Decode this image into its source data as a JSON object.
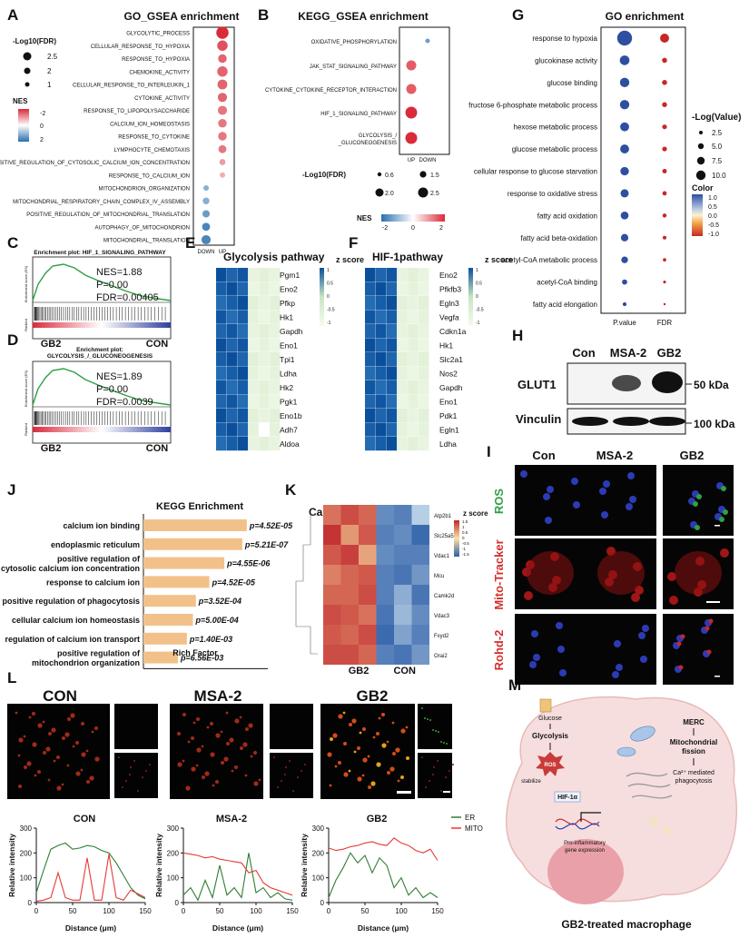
{
  "figure": {
    "panels": {
      "A": "A",
      "B": "B",
      "C": "C",
      "D": "D",
      "E": "E",
      "F": "F",
      "G": "G",
      "H": "H",
      "I": "I",
      "J": "J",
      "K": "K",
      "L": "L",
      "M": "M"
    }
  },
  "panel_A": {
    "title": "GO_GSEA enrichment",
    "size_legend_title": "-Log10(FDR)",
    "size_legend": [
      "2.5",
      "2",
      "1"
    ],
    "color_legend_title": "NES",
    "color_legend": [
      "-2",
      "0",
      "2"
    ],
    "xticks": [
      "DOWN",
      "UP"
    ]
  },
  "panel_B": {
    "title": "KEGG_GSEA enrichment",
    "xticks": [
      "UP",
      "DOWN"
    ],
    "size_legend_title": "-Log10(FDR)",
    "size_legend": [
      "0.6",
      "1.5",
      "2.0",
      "2.5"
    ],
    "color_legend_title": "NES",
    "color_legend": [
      "-2",
      "0",
      "2"
    ]
  },
  "panel_C": {
    "title": "Enrichment plot: HIF_1_SIGNALING_PATHWAY",
    "stats": [
      "NES=1.88",
      "P=0.00",
      "FDR=0.00405"
    ],
    "xleft": "GB2",
    "xright": "CON",
    "ylabel": "Enrichment score (ES)",
    "ylabel2": "Ranked"
  },
  "panel_D": {
    "title1": "Enrichment plot:",
    "title2": "GLYCOLYSIS_/_GLUCONEOGENESIS",
    "stats": [
      "NES=1.89",
      "P=0.00",
      "FDR=0.0039"
    ],
    "xleft": "GB2",
    "xright": "CON",
    "ylabel": "Enrichment score (ES)",
    "ylabel2": "Ranked"
  },
  "panel_E": {
    "title": "Glycolysis pathway",
    "zlabel": "z score",
    "scale": [
      "1",
      "0.5",
      "0",
      "-0.5",
      "-1"
    ]
  },
  "panel_F": {
    "title": "HIF-1pathway",
    "zlabel": "z score",
    "scale": [
      "1",
      "0.5",
      "0",
      "-0.5",
      "-1"
    ]
  },
  "panel_G": {
    "title": "GO enrichment",
    "xticks": [
      "P.value",
      "FDR"
    ],
    "size_legend_title": "-Log(Value)",
    "size_legend": [
      "2.5",
      "5.0",
      "7.5",
      "10.0"
    ],
    "color_legend_title": "Color",
    "color_legend": [
      "1.0",
      "0.5",
      "0.0",
      "-0.5",
      "-1.0"
    ]
  },
  "panel_H": {
    "columns": [
      "Con",
      "MSA-2",
      "GB2"
    ],
    "rows": [
      "GLUT1",
      "Vinculin"
    ],
    "markers": [
      "50 kDa",
      "100 kDa"
    ]
  },
  "panel_I": {
    "columns": [
      "Con",
      "MSA-2",
      "GB2"
    ],
    "rows": [
      "ROS",
      "Mito-Tracker",
      "Rohd-2"
    ]
  },
  "panel_J": {
    "title": "KEGG Enrichment",
    "xlabel": "Rich Factor",
    "xticks": [
      "0",
      "2",
      "4",
      "6",
      "8"
    ]
  },
  "panel_K": {
    "title": "Calcium homeostasis",
    "zlabel": "z score",
    "scale": [
      "1.5",
      "1",
      "0.5",
      "0",
      "-0.5",
      "-1",
      "-1.5"
    ],
    "xlabels": [
      "GB2",
      "CON"
    ]
  },
  "panel_L": {
    "columns": [
      "CON",
      "MSA-2",
      "GB2"
    ],
    "legend": [
      "ER",
      "MITO"
    ],
    "ylabel": "Relative intensity",
    "xlabel": "Distance (μm)",
    "xticks": [
      "0",
      "50",
      "100",
      "150"
    ],
    "yticks": [
      "0",
      "100",
      "200",
      "300"
    ]
  },
  "panel_M": {
    "labels": {
      "glucose": "Glucose",
      "glycolysis": "Glycolysis",
      "ros": "ROS",
      "stabilize": "stabilize",
      "hif": "HIF-1α",
      "proinf1": "Pro-inflammatory",
      "proinf2": "gene expression",
      "merc": "MERC",
      "mito1": "Mitochondrial",
      "mito2": "fission",
      "ca1": "Ca²⁺ mediated",
      "ca2": "phagocytosis"
    },
    "caption": "GB2-treated macrophage"
  },
  "chart_data": [
    {
      "type": "scatter",
      "panel": "A",
      "title": "GO_GSEA enrichment",
      "categories": [
        "GLYCOLYTIC_PROCESS",
        "CELLULAR_RESPONSE_TO_HYPOXIA",
        "RESPONSE_TO_HYPOXIA",
        "CHEMOKINE_ACTIVITY",
        "CELLULAR_RESPONSE_TO_INTERLEUKIN_1",
        "CYTOKINE_ACTIVITY",
        "RESPONSE_TO_LIPOPOLYSACCHARIDE",
        "CALCIUM_ION_HOMEOSTASIS",
        "RESPONSE_TO_CYTOKINE",
        "LYMPHOCYTE_CHEMOTAXIS",
        "POSITIVE_REGULATION_OF_CYTOSOLIC_CALCIUM_ION_CONCENTRATION",
        "RESPONSE_TO_CALCIUM_ION",
        "MITOCHONDRION_ORGANIZATION",
        "MITOCHONDRIAL_RESPIRATORY_CHAIN_COMPLEX_IV_ASSEMBLY",
        "POSITIVE_REGULATION_OF_MITOCHONDRIAL_TRANSLATION",
        "AUTOPHAGY_OF_MITOCHONDRION",
        "MITOCHONDRIAL_TRANSLATION"
      ],
      "x": [
        "UP",
        "UP",
        "UP",
        "UP",
        "UP",
        "UP",
        "UP",
        "UP",
        "UP",
        "UP",
        "UP",
        "UP",
        "DOWN",
        "DOWN",
        "DOWN",
        "DOWN",
        "DOWN"
      ],
      "size": [
        2.9,
        2.6,
        2.3,
        2.6,
        2.5,
        2.4,
        2.4,
        2.3,
        2.3,
        2.2,
        1.9,
        1.7,
        1.8,
        2.0,
        2.1,
        2.2,
        2.4
      ],
      "color": [
        -2.2,
        -2.0,
        -1.9,
        -1.9,
        -1.9,
        -1.9,
        -1.8,
        -1.8,
        -1.8,
        -1.8,
        -1.6,
        -1.5,
        1.6,
        1.6,
        1.7,
        1.8,
        1.8
      ]
    },
    {
      "type": "scatter",
      "panel": "B",
      "title": "KEGG_GSEA enrichment",
      "categories": [
        "OXIDATIVE_PHOSPHORYLATION",
        "JAK_STAT_SIGNALING_PATHWAY",
        "CYTOKINE_CYTOKINE_RECEPTOR_INTERACTION",
        "HIF_1_SIGNALING_PATHWAY",
        "GLYCOLYSIS_/_GLUCONEOGENESIS"
      ],
      "x": [
        "DOWN",
        "UP",
        "UP",
        "UP",
        "UP"
      ],
      "size": [
        0.6,
        2.0,
        2.0,
        2.5,
        2.5
      ],
      "color": [
        1.5,
        -1.8,
        -1.8,
        -2.0,
        -2.0
      ]
    },
    {
      "type": "heatmap",
      "panel": "E",
      "rows": [
        "Pgm1",
        "Eno2",
        "Pfkp",
        "Hk1",
        "Gapdh",
        "Eno1",
        "Tpi1",
        "Ldha",
        "Hk2",
        "Pgk1",
        "Eno1b",
        "Adh7",
        "Aldoa"
      ],
      "columns": [
        "GB2",
        "GB2",
        "GB2",
        "CON",
        "CON",
        "CON"
      ]
    },
    {
      "type": "heatmap",
      "panel": "F",
      "rows": [
        "Eno2",
        "Pfkfb3",
        "Egln3",
        "Vegfa",
        "Cdkn1a",
        "Hk1",
        "Slc2a1",
        "Nos2",
        "Gapdh",
        "Eno1",
        "Pdk1",
        "Egln1",
        "Ldha"
      ],
      "columns": [
        "GB2",
        "GB2",
        "GB2",
        "CON",
        "CON",
        "CON"
      ]
    },
    {
      "type": "scatter",
      "panel": "G",
      "title": "GO enrichment",
      "categories": [
        "response to hypoxia",
        "glucokinase activity",
        "glucose binding",
        "fructose 6-phosphate metabolic process",
        "hexose metabolic process",
        "glucose metabolic process",
        "cellular response to glucose starvation",
        "response to oxidative stress",
        "fatty acid oxidation",
        "fatty acid beta-oxidation",
        "acetyl-CoA metabolic process",
        "acetyl-CoA binding",
        "fatty acid elongation"
      ],
      "x": [
        "P.value",
        "FDR"
      ],
      "pvalue_size": [
        10.0,
        6.5,
        6.3,
        6.3,
        6.0,
        6.0,
        5.7,
        5.5,
        5.3,
        5.0,
        4.5,
        3.5,
        2.6
      ],
      "fdr_size": [
        8.0,
        4.5,
        4.5,
        4.4,
        4.2,
        4.2,
        4.0,
        3.8,
        3.6,
        3.3,
        3.0,
        2.5,
        2.0
      ],
      "pvalue_color": [
        0.9,
        0.9,
        0.9,
        0.9,
        0.9,
        0.9,
        0.9,
        0.9,
        0.9,
        0.9,
        0.9,
        0.9,
        0.9
      ],
      "fdr_color": [
        -1.0,
        -1.0,
        -1.0,
        -1.0,
        -1.0,
        -1.0,
        -1.0,
        -1.0,
        -1.0,
        -1.0,
        -1.0,
        -1.0,
        -1.0
      ]
    },
    {
      "type": "bar",
      "panel": "J",
      "title": "KEGG Enrichment",
      "categories": [
        "calcium ion binding",
        "endoplasmic reticulum",
        "positive regulation of cytosolic calcium ion concentration",
        "response to calcium ion",
        "positive regulation of phagocytosis",
        "cellular calcium ion homeostasis",
        "regulation of calcium ion transport",
        "positive regulation of mitochondrion organization"
      ],
      "values": [
        6.9,
        6.6,
        5.4,
        4.4,
        3.5,
        3.3,
        2.9,
        2.3
      ],
      "labels": [
        "p=4.52E-05",
        "p=5.21E-07",
        "p=4.55E-06",
        "p=4.52E-05",
        "p=3.52E-04",
        "p=5.00E-04",
        "p=1.40E-03",
        "p=6.56E-03"
      ],
      "xlabel": "Rich Factor",
      "xlim": [
        0,
        8
      ]
    },
    {
      "type": "heatmap",
      "panel": "K",
      "title": "Calcium homeostasis",
      "rows": [
        "Atp2b1",
        "Slc25a5",
        "Vdac1",
        "Mcu",
        "Camk2d",
        "Vdac3",
        "Fxyd2",
        "Orai2"
      ],
      "columns": [
        "GB2",
        "GB2",
        "GB2",
        "CON",
        "CON",
        "CON"
      ],
      "values": [
        [
          0.9,
          1.2,
          1.0,
          -0.9,
          -1.0,
          -0.3
        ],
        [
          1.4,
          0.6,
          1.1,
          -1.0,
          -0.9,
          -1.2
        ],
        [
          1.1,
          1.3,
          0.5,
          -0.9,
          -1.0,
          -1.0
        ],
        [
          0.8,
          1.0,
          1.1,
          -1.0,
          -1.1,
          -0.8
        ],
        [
          1.0,
          1.0,
          1.2,
          -1.0,
          -0.6,
          -1.1
        ],
        [
          1.2,
          1.1,
          0.9,
          -1.1,
          -0.5,
          -0.9
        ],
        [
          1.1,
          1.0,
          1.2,
          -1.2,
          -0.7,
          -1.0
        ],
        [
          1.2,
          1.2,
          1.0,
          -1.0,
          -1.1,
          -0.8
        ]
      ],
      "zlim": [
        -1.5,
        1.5
      ]
    },
    {
      "type": "line",
      "panel": "L",
      "title": "CON",
      "series": [
        {
          "name": "ER",
          "x": [
            0,
            10,
            20,
            30,
            40,
            50,
            60,
            70,
            80,
            90,
            100,
            110,
            120,
            130,
            140,
            150
          ],
          "values": [
            40,
            130,
            215,
            230,
            240,
            215,
            220,
            230,
            225,
            210,
            200,
            160,
            110,
            60,
            30,
            15
          ]
        },
        {
          "name": "MITO",
          "x": [
            0,
            10,
            20,
            30,
            40,
            50,
            60,
            70,
            80,
            90,
            100,
            110,
            120,
            130,
            140,
            150
          ],
          "values": [
            5,
            10,
            20,
            120,
            20,
            10,
            10,
            180,
            10,
            10,
            195,
            20,
            10,
            50,
            35,
            20
          ]
        }
      ],
      "xlim": [
        0,
        150
      ],
      "ylim": [
        0,
        300
      ]
    },
    {
      "type": "line",
      "panel": "L",
      "title": "MSA-2",
      "series": [
        {
          "name": "ER",
          "x": [
            0,
            10,
            20,
            30,
            40,
            50,
            60,
            70,
            80,
            90,
            100,
            110,
            120,
            130,
            140,
            150
          ],
          "values": [
            30,
            60,
            10,
            90,
            20,
            150,
            30,
            60,
            20,
            200,
            40,
            60,
            20,
            40,
            15,
            10
          ]
        },
        {
          "name": "MITO",
          "x": [
            0,
            10,
            20,
            30,
            40,
            50,
            60,
            70,
            80,
            90,
            100,
            110,
            120,
            130,
            140,
            150
          ],
          "values": [
            200,
            195,
            190,
            180,
            185,
            175,
            170,
            165,
            160,
            120,
            130,
            80,
            60,
            50,
            40,
            30
          ]
        }
      ],
      "xlim": [
        0,
        150
      ],
      "ylim": [
        0,
        300
      ]
    },
    {
      "type": "line",
      "panel": "L",
      "title": "GB2",
      "series": [
        {
          "name": "ER",
          "x": [
            0,
            10,
            20,
            30,
            40,
            50,
            60,
            70,
            80,
            90,
            100,
            110,
            120,
            130,
            140,
            150
          ],
          "values": [
            20,
            90,
            140,
            200,
            160,
            190,
            120,
            180,
            150,
            60,
            100,
            30,
            60,
            20,
            40,
            20
          ]
        },
        {
          "name": "MITO",
          "x": [
            0,
            10,
            20,
            30,
            40,
            50,
            60,
            70,
            80,
            90,
            100,
            110,
            120,
            130,
            140,
            150
          ],
          "values": [
            220,
            210,
            215,
            225,
            230,
            240,
            245,
            235,
            230,
            260,
            240,
            230,
            210,
            200,
            215,
            170
          ]
        }
      ],
      "xlim": [
        0,
        150
      ],
      "ylim": [
        0,
        300
      ]
    }
  ]
}
